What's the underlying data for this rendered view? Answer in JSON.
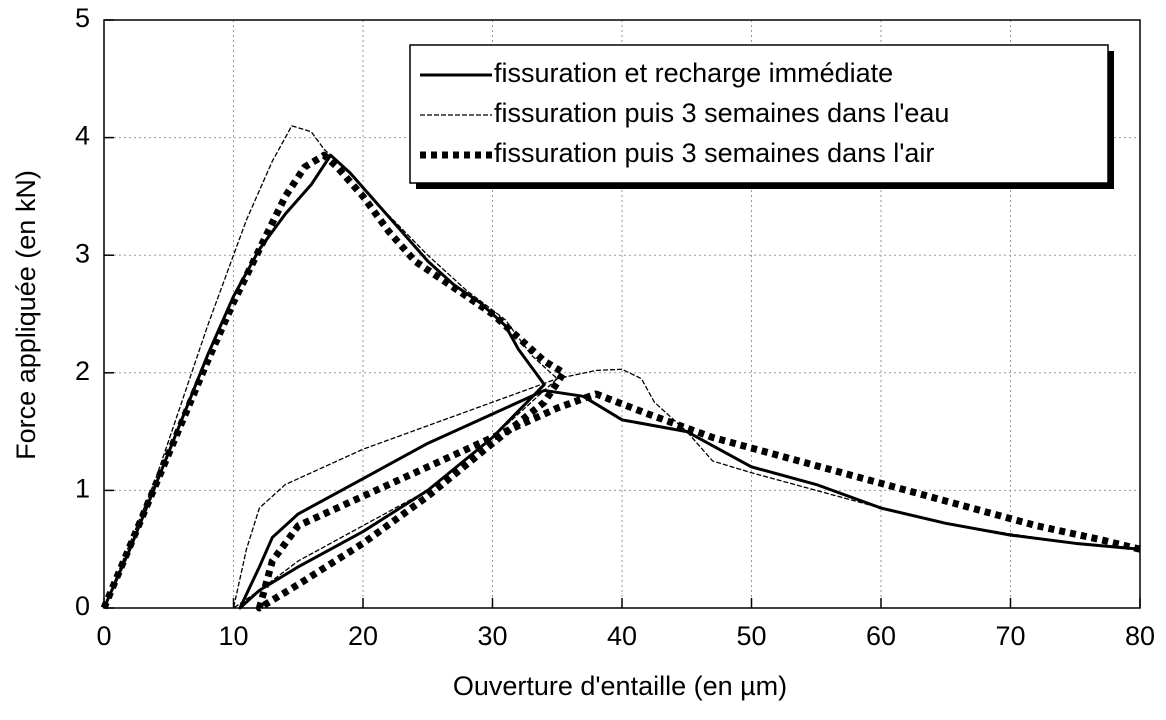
{
  "chart_data": {
    "type": "line",
    "x_label": "Ouverture d'entaille (en µm)",
    "y_label": "Force appliquée (en kN)",
    "xlim": [
      0,
      80
    ],
    "ylim": [
      0,
      5
    ],
    "xticks": [
      0,
      10,
      20,
      30,
      40,
      50,
      60,
      70,
      80
    ],
    "yticks": [
      0,
      1,
      2,
      3,
      4,
      5
    ],
    "grid": true,
    "legend": "upper right",
    "series": [
      {
        "name": "fissuration et recharge immédiate",
        "color": "#000000",
        "style": "solid",
        "x": [
          0,
          2,
          4,
          6,
          8,
          10,
          12,
          14,
          16,
          17.5,
          19,
          21,
          23,
          25,
          27,
          29,
          31,
          32,
          33,
          34,
          30,
          25,
          20,
          15,
          12,
          10.5,
          12,
          13,
          15,
          20,
          25,
          30,
          34,
          37,
          40,
          45,
          50,
          55,
          60,
          65,
          70,
          75,
          80
        ],
        "values": [
          0,
          0.5,
          1.05,
          1.6,
          2.15,
          2.65,
          3.05,
          3.35,
          3.6,
          3.85,
          3.7,
          3.45,
          3.2,
          2.95,
          2.75,
          2.6,
          2.4,
          2.2,
          2.05,
          1.9,
          1.45,
          1.0,
          0.65,
          0.35,
          0.15,
          0,
          0.35,
          0.6,
          0.8,
          1.1,
          1.4,
          1.65,
          1.85,
          1.8,
          1.6,
          1.5,
          1.2,
          1.05,
          0.85,
          0.72,
          0.62,
          0.55,
          0.5
        ]
      },
      {
        "name": "fissuration puis 3 semaines dans l'eau",
        "color": "#000000",
        "style": "dashed",
        "x": [
          0,
          4,
          8,
          11,
          13,
          14.5,
          16,
          17,
          19,
          21,
          25,
          28,
          31,
          33,
          35,
          30,
          25,
          20,
          15,
          12,
          10,
          11,
          12,
          14,
          20,
          25,
          30,
          35,
          38,
          40,
          41.5,
          42.5,
          45,
          47,
          50,
          55,
          60,
          65,
          70,
          75,
          80
        ],
        "values": [
          0,
          1.1,
          2.4,
          3.3,
          3.8,
          4.1,
          4.05,
          3.9,
          3.7,
          3.45,
          3.0,
          2.7,
          2.45,
          2.15,
          1.95,
          1.45,
          1.0,
          0.7,
          0.4,
          0.15,
          0,
          0.5,
          0.85,
          1.05,
          1.35,
          1.55,
          1.75,
          1.95,
          2.02,
          2.03,
          1.95,
          1.75,
          1.5,
          1.25,
          1.15,
          1.0,
          0.85,
          0.72,
          0.63,
          0.55,
          0.5
        ]
      },
      {
        "name": "fissuration puis 3 semaines dans l'air",
        "color": "#000000",
        "style": "dotted",
        "x": [
          0,
          4,
          8,
          10,
          12,
          14,
          15.5,
          17,
          18,
          20,
          22,
          24,
          26,
          28,
          30,
          32,
          34,
          35.5,
          34,
          30,
          25,
          20,
          15,
          12,
          13,
          15,
          20,
          25,
          30,
          35,
          38,
          42,
          47,
          52,
          57,
          62,
          67,
          72,
          77,
          80
        ],
        "values": [
          0,
          1.05,
          2.1,
          2.6,
          3.05,
          3.5,
          3.75,
          3.85,
          3.75,
          3.5,
          3.2,
          2.95,
          2.8,
          2.65,
          2.5,
          2.3,
          2.1,
          2.0,
          1.75,
          1.4,
          0.95,
          0.55,
          0.2,
          0,
          0.4,
          0.7,
          0.95,
          1.2,
          1.45,
          1.7,
          1.82,
          1.65,
          1.45,
          1.3,
          1.15,
          1.0,
          0.85,
          0.7,
          0.58,
          0.5
        ]
      }
    ]
  }
}
